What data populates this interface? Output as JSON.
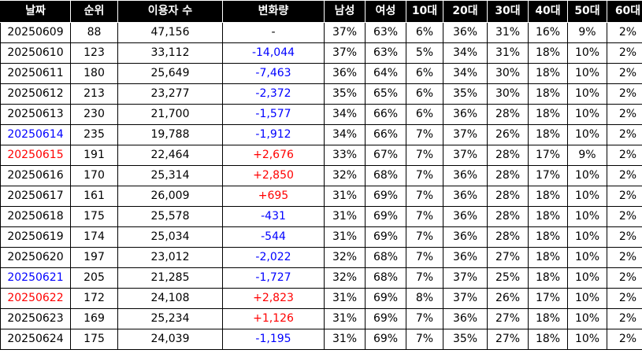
{
  "table": {
    "headers": [
      "날짜",
      "순위",
      "이용자 수",
      "변화량",
      "남성",
      "여성",
      "10대",
      "20대",
      "30대",
      "40대",
      "50대",
      "60대"
    ],
    "colors": {
      "header_bg": "#000000",
      "header_text": "#ffffff",
      "negative": "#0000ff",
      "positive": "#ff0000",
      "saturday_date": "#0000ff",
      "sunday_date": "#ff0000"
    },
    "rows": [
      {
        "date": "20250609",
        "date_color": "",
        "rank": "88",
        "users": "47,156",
        "change": "-",
        "change_sign": "",
        "male": "37%",
        "female": "63%",
        "a10": "6%",
        "a20": "36%",
        "a30": "31%",
        "a40": "16%",
        "a50": "9%",
        "a60": "2%"
      },
      {
        "date": "20250610",
        "date_color": "",
        "rank": "123",
        "users": "33,112",
        "change": "-14,044",
        "change_sign": "neg",
        "male": "37%",
        "female": "63%",
        "a10": "5%",
        "a20": "34%",
        "a30": "31%",
        "a40": "18%",
        "a50": "10%",
        "a60": "2%"
      },
      {
        "date": "20250611",
        "date_color": "",
        "rank": "180",
        "users": "25,649",
        "change": "-7,463",
        "change_sign": "neg",
        "male": "36%",
        "female": "64%",
        "a10": "6%",
        "a20": "34%",
        "a30": "30%",
        "a40": "18%",
        "a50": "10%",
        "a60": "2%"
      },
      {
        "date": "20250612",
        "date_color": "",
        "rank": "213",
        "users": "23,277",
        "change": "-2,372",
        "change_sign": "neg",
        "male": "35%",
        "female": "65%",
        "a10": "6%",
        "a20": "35%",
        "a30": "30%",
        "a40": "18%",
        "a50": "10%",
        "a60": "2%"
      },
      {
        "date": "20250613",
        "date_color": "",
        "rank": "230",
        "users": "21,700",
        "change": "-1,577",
        "change_sign": "neg",
        "male": "34%",
        "female": "66%",
        "a10": "6%",
        "a20": "36%",
        "a30": "28%",
        "a40": "18%",
        "a50": "10%",
        "a60": "2%"
      },
      {
        "date": "20250614",
        "date_color": "blue",
        "rank": "235",
        "users": "19,788",
        "change": "-1,912",
        "change_sign": "neg",
        "male": "34%",
        "female": "66%",
        "a10": "7%",
        "a20": "37%",
        "a30": "26%",
        "a40": "18%",
        "a50": "10%",
        "a60": "2%"
      },
      {
        "date": "20250615",
        "date_color": "red",
        "rank": "191",
        "users": "22,464",
        "change": "+2,676",
        "change_sign": "pos",
        "male": "33%",
        "female": "67%",
        "a10": "7%",
        "a20": "37%",
        "a30": "28%",
        "a40": "17%",
        "a50": "9%",
        "a60": "2%"
      },
      {
        "date": "20250616",
        "date_color": "",
        "rank": "170",
        "users": "25,314",
        "change": "+2,850",
        "change_sign": "pos",
        "male": "32%",
        "female": "68%",
        "a10": "7%",
        "a20": "36%",
        "a30": "28%",
        "a40": "17%",
        "a50": "10%",
        "a60": "2%"
      },
      {
        "date": "20250617",
        "date_color": "",
        "rank": "161",
        "users": "26,009",
        "change": "+695",
        "change_sign": "pos",
        "male": "31%",
        "female": "69%",
        "a10": "7%",
        "a20": "36%",
        "a30": "28%",
        "a40": "18%",
        "a50": "10%",
        "a60": "2%"
      },
      {
        "date": "20250618",
        "date_color": "",
        "rank": "175",
        "users": "25,578",
        "change": "-431",
        "change_sign": "neg",
        "male": "31%",
        "female": "69%",
        "a10": "7%",
        "a20": "36%",
        "a30": "28%",
        "a40": "18%",
        "a50": "10%",
        "a60": "2%"
      },
      {
        "date": "20250619",
        "date_color": "",
        "rank": "174",
        "users": "25,034",
        "change": "-544",
        "change_sign": "neg",
        "male": "31%",
        "female": "69%",
        "a10": "7%",
        "a20": "36%",
        "a30": "28%",
        "a40": "18%",
        "a50": "10%",
        "a60": "2%"
      },
      {
        "date": "20250620",
        "date_color": "",
        "rank": "197",
        "users": "23,012",
        "change": "-2,022",
        "change_sign": "neg",
        "male": "32%",
        "female": "68%",
        "a10": "7%",
        "a20": "36%",
        "a30": "27%",
        "a40": "18%",
        "a50": "10%",
        "a60": "2%"
      },
      {
        "date": "20250621",
        "date_color": "blue",
        "rank": "205",
        "users": "21,285",
        "change": "-1,727",
        "change_sign": "neg",
        "male": "32%",
        "female": "68%",
        "a10": "7%",
        "a20": "37%",
        "a30": "25%",
        "a40": "18%",
        "a50": "10%",
        "a60": "2%"
      },
      {
        "date": "20250622",
        "date_color": "red",
        "rank": "172",
        "users": "24,108",
        "change": "+2,823",
        "change_sign": "pos",
        "male": "31%",
        "female": "69%",
        "a10": "8%",
        "a20": "37%",
        "a30": "26%",
        "a40": "17%",
        "a50": "10%",
        "a60": "2%"
      },
      {
        "date": "20250623",
        "date_color": "",
        "rank": "169",
        "users": "25,234",
        "change": "+1,126",
        "change_sign": "pos",
        "male": "31%",
        "female": "69%",
        "a10": "7%",
        "a20": "36%",
        "a30": "27%",
        "a40": "18%",
        "a50": "10%",
        "a60": "2%"
      },
      {
        "date": "20250624",
        "date_color": "",
        "rank": "175",
        "users": "24,039",
        "change": "-1,195",
        "change_sign": "neg",
        "male": "31%",
        "female": "69%",
        "a10": "7%",
        "a20": "35%",
        "a30": "27%",
        "a40": "18%",
        "a50": "10%",
        "a60": "2%"
      }
    ]
  }
}
